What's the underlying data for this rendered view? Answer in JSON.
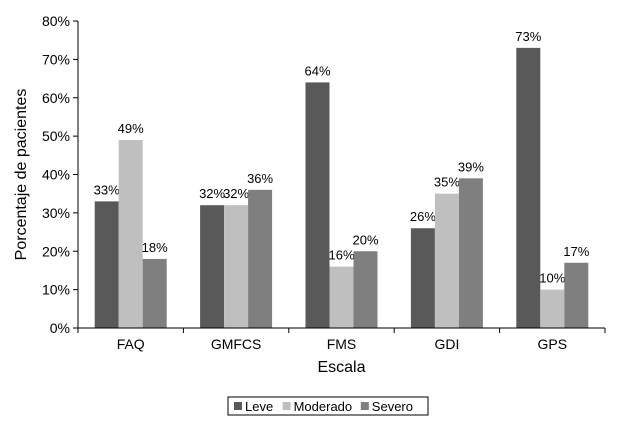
{
  "chart_data": {
    "type": "bar",
    "title": "",
    "xlabel": "Escala",
    "ylabel": "Porcentaje de pacientes",
    "categories": [
      "FAQ",
      "GMFCS",
      "FMS",
      "GDI",
      "GPS"
    ],
    "series": [
      {
        "name": "Leve",
        "values": [
          33,
          32,
          64,
          26,
          73
        ],
        "color": "#595959"
      },
      {
        "name": "Moderado",
        "values": [
          49,
          32,
          16,
          35,
          10
        ],
        "color": "#bfbfbf"
      },
      {
        "name": "Severo",
        "values": [
          18,
          36,
          20,
          39,
          17
        ],
        "color": "#7f7f7f"
      }
    ],
    "data_labels": [
      [
        "33%",
        "32%",
        "64%",
        "26%",
        "73%"
      ],
      [
        "49%",
        "32%",
        "16%",
        "35%",
        "10%"
      ],
      [
        "18%",
        "36%",
        "20%",
        "39%",
        "17%"
      ]
    ],
    "ylim": [
      0,
      80
    ],
    "yticks": [
      0,
      10,
      20,
      30,
      40,
      50,
      60,
      70,
      80
    ],
    "ytick_labels": [
      "0%",
      "10%",
      "20%",
      "30%",
      "40%",
      "50%",
      "60%",
      "70%",
      "80%"
    ],
    "grid": false,
    "legend_position": "bottom"
  }
}
